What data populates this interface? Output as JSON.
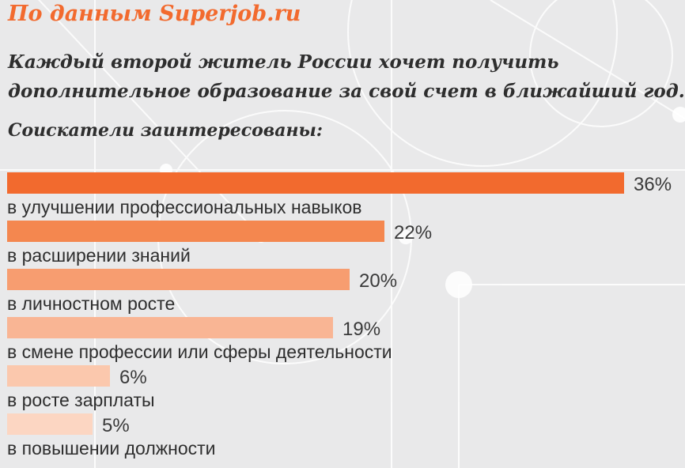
{
  "header": {
    "source": "По данным Superjob.ru",
    "headline_line1": "Каждый второй житель России хочет получить",
    "headline_line2": "дополнительное образование за свой счет в ближайший год.",
    "subtitle": "Соискатели заинтересованы:"
  },
  "chart_data": {
    "type": "bar",
    "orientation": "horizontal",
    "categories": [
      "в улучшении профессиональных навыков",
      "в расширении знаний",
      "в личностном росте",
      "в смене профессии или сферы деятельности",
      "в росте зарплаты",
      "в повышении должности"
    ],
    "values": [
      36,
      22,
      20,
      19,
      6,
      5
    ],
    "value_labels": [
      "36%",
      "22%",
      "20%",
      "19%",
      "6%",
      "5%"
    ],
    "colors": [
      "#f26a2e",
      "#f4874f",
      "#f79d70",
      "#f9b594",
      "#fbc8ad",
      "#fcd6c2"
    ],
    "xlim": [
      0,
      36
    ],
    "grid": false,
    "legend": "none"
  }
}
